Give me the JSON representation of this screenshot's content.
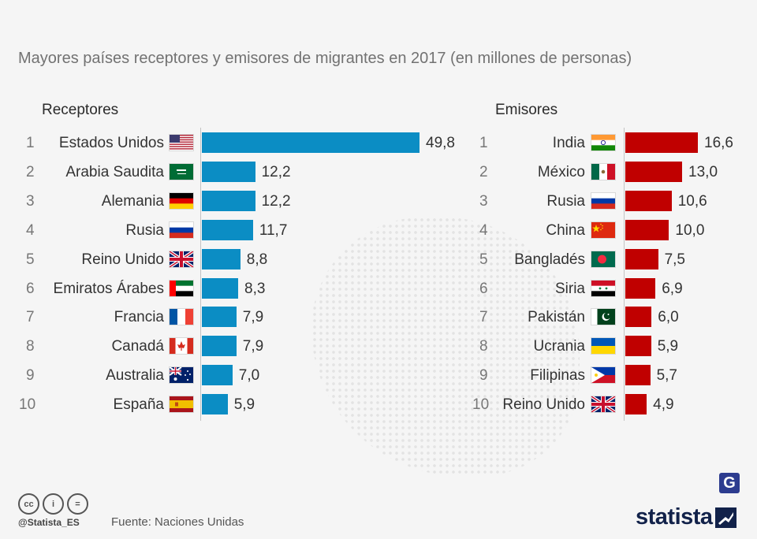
{
  "title": "Mayores países receptores y emisores de migrantes en 2017 (en millones de personas)",
  "colors": {
    "receptores": "#0b8dc4",
    "emisores": "#c00000"
  },
  "chart_data": [
    {
      "type": "bar",
      "orientation": "horizontal",
      "title": "Receptores",
      "ranks": [
        "1",
        "2",
        "3",
        "4",
        "5",
        "6",
        "7",
        "8",
        "9",
        "10"
      ],
      "categories": [
        "Estados Unidos",
        "Arabia Saudita",
        "Alemania",
        "Rusia",
        "Reino Unido",
        "Emiratos Árabes",
        "Francia",
        "Canadá",
        "Australia",
        "España"
      ],
      "value_labels": [
        "49,8",
        "12,2",
        "12,2",
        "11,7",
        "8,8",
        "8,3",
        "7,9",
        "7,9",
        "7,0",
        "5,9"
      ],
      "values": [
        49.8,
        12.2,
        12.2,
        11.7,
        8.8,
        8.3,
        7.9,
        7.9,
        7.0,
        5.9
      ],
      "flags": [
        "us",
        "sa",
        "de",
        "ru",
        "gb",
        "ae",
        "fr",
        "ca",
        "au",
        "es"
      ],
      "xlim": [
        0,
        49.8
      ],
      "grid": false
    },
    {
      "type": "bar",
      "orientation": "horizontal",
      "title": "Emisores",
      "ranks": [
        "1",
        "2",
        "3",
        "4",
        "5",
        "6",
        "7",
        "8",
        "9",
        "10"
      ],
      "categories": [
        "India",
        "México",
        "Rusia",
        "China",
        "Bangladés",
        "Siria",
        "Pakistán",
        "Ucrania",
        "Filipinas",
        "Reino Unido"
      ],
      "value_labels": [
        "16,6",
        "13,0",
        "10,6",
        "10,0",
        "7,5",
        "6,9",
        "6,0",
        "5,9",
        "5,7",
        "4,9"
      ],
      "values": [
        16.6,
        13.0,
        10.6,
        10.0,
        7.5,
        6.9,
        6.0,
        5.9,
        5.7,
        4.9
      ],
      "flags": [
        "in",
        "mx",
        "ru",
        "cn",
        "bd",
        "sy",
        "pk",
        "ua",
        "ph",
        "gb"
      ],
      "xlim": [
        0,
        16.6
      ],
      "grid": false
    }
  ],
  "footer": {
    "license_icons": [
      "cc-icon",
      "by-icon",
      "nd-icon"
    ],
    "license_labels": [
      "cc",
      "i",
      "="
    ],
    "handle": "@Statista_ES",
    "source": "Fuente: Naciones Unidas",
    "brand": "statista",
    "brand_badge": "G"
  }
}
